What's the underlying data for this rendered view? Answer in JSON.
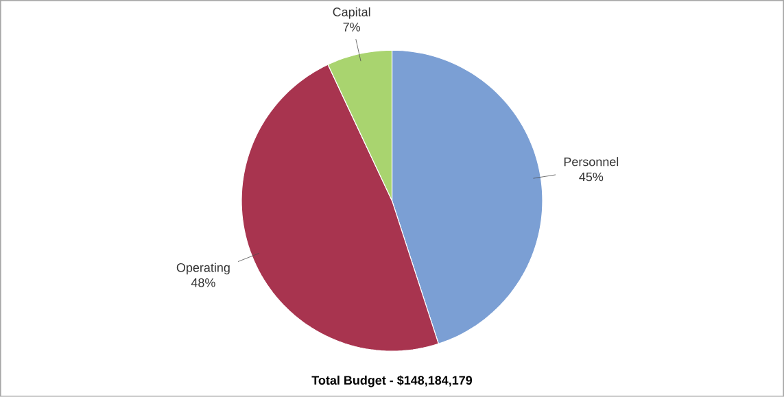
{
  "chart_data": {
    "type": "pie",
    "title": "Total Budget - $148,184,179",
    "categories": [
      "Personnel",
      "Operating",
      "Capital"
    ],
    "values": [
      45,
      48,
      7
    ],
    "value_labels": [
      "45%",
      "48%",
      "7%"
    ],
    "colors": [
      "#7b9fd4",
      "#a8344f",
      "#a9d46f"
    ]
  }
}
